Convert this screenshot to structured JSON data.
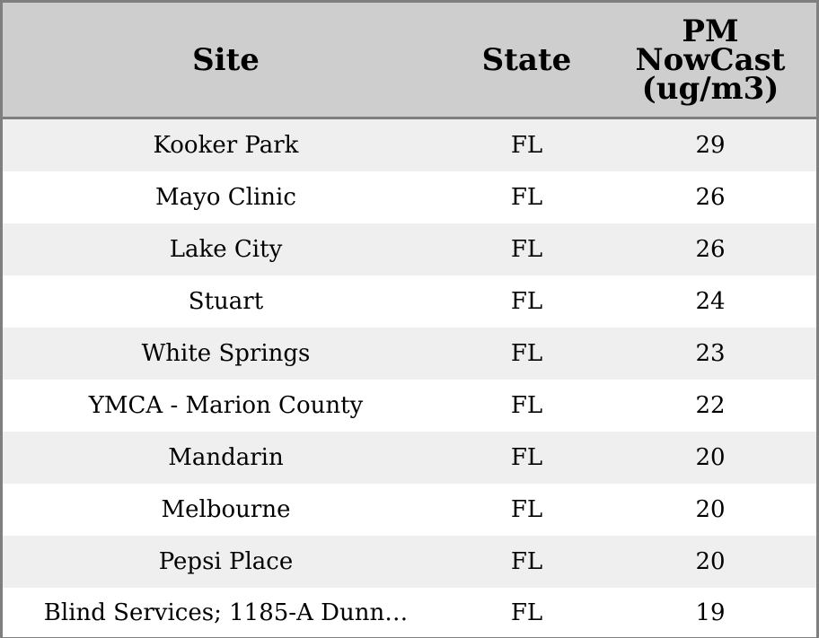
{
  "chart_data": {
    "type": "table",
    "columns": [
      "Site",
      "State",
      "PM NowCast (ug/m3)"
    ],
    "rows": [
      {
        "site": "Kooker Park",
        "state": "FL",
        "pm": 29
      },
      {
        "site": "Mayo Clinic",
        "state": "FL",
        "pm": 26
      },
      {
        "site": "Lake City",
        "state": "FL",
        "pm": 26
      },
      {
        "site": "Stuart",
        "state": "FL",
        "pm": 24
      },
      {
        "site": "White Springs",
        "state": "FL",
        "pm": 23
      },
      {
        "site": "YMCA - Marion County",
        "state": "FL",
        "pm": 22
      },
      {
        "site": "Mandarin",
        "state": "FL",
        "pm": 20
      },
      {
        "site": "Melbourne",
        "state": "FL",
        "pm": 20
      },
      {
        "site": "Pepsi Place",
        "state": "FL",
        "pm": 20
      },
      {
        "site": "Blind Services; 1185-A Dunn…",
        "state": "FL",
        "pm": 19
      }
    ],
    "colors": {
      "header_bg": "#cecece",
      "row_alt_bg": "#efefef",
      "row_bg": "#ffffff",
      "border": "#7f7f7f"
    }
  }
}
